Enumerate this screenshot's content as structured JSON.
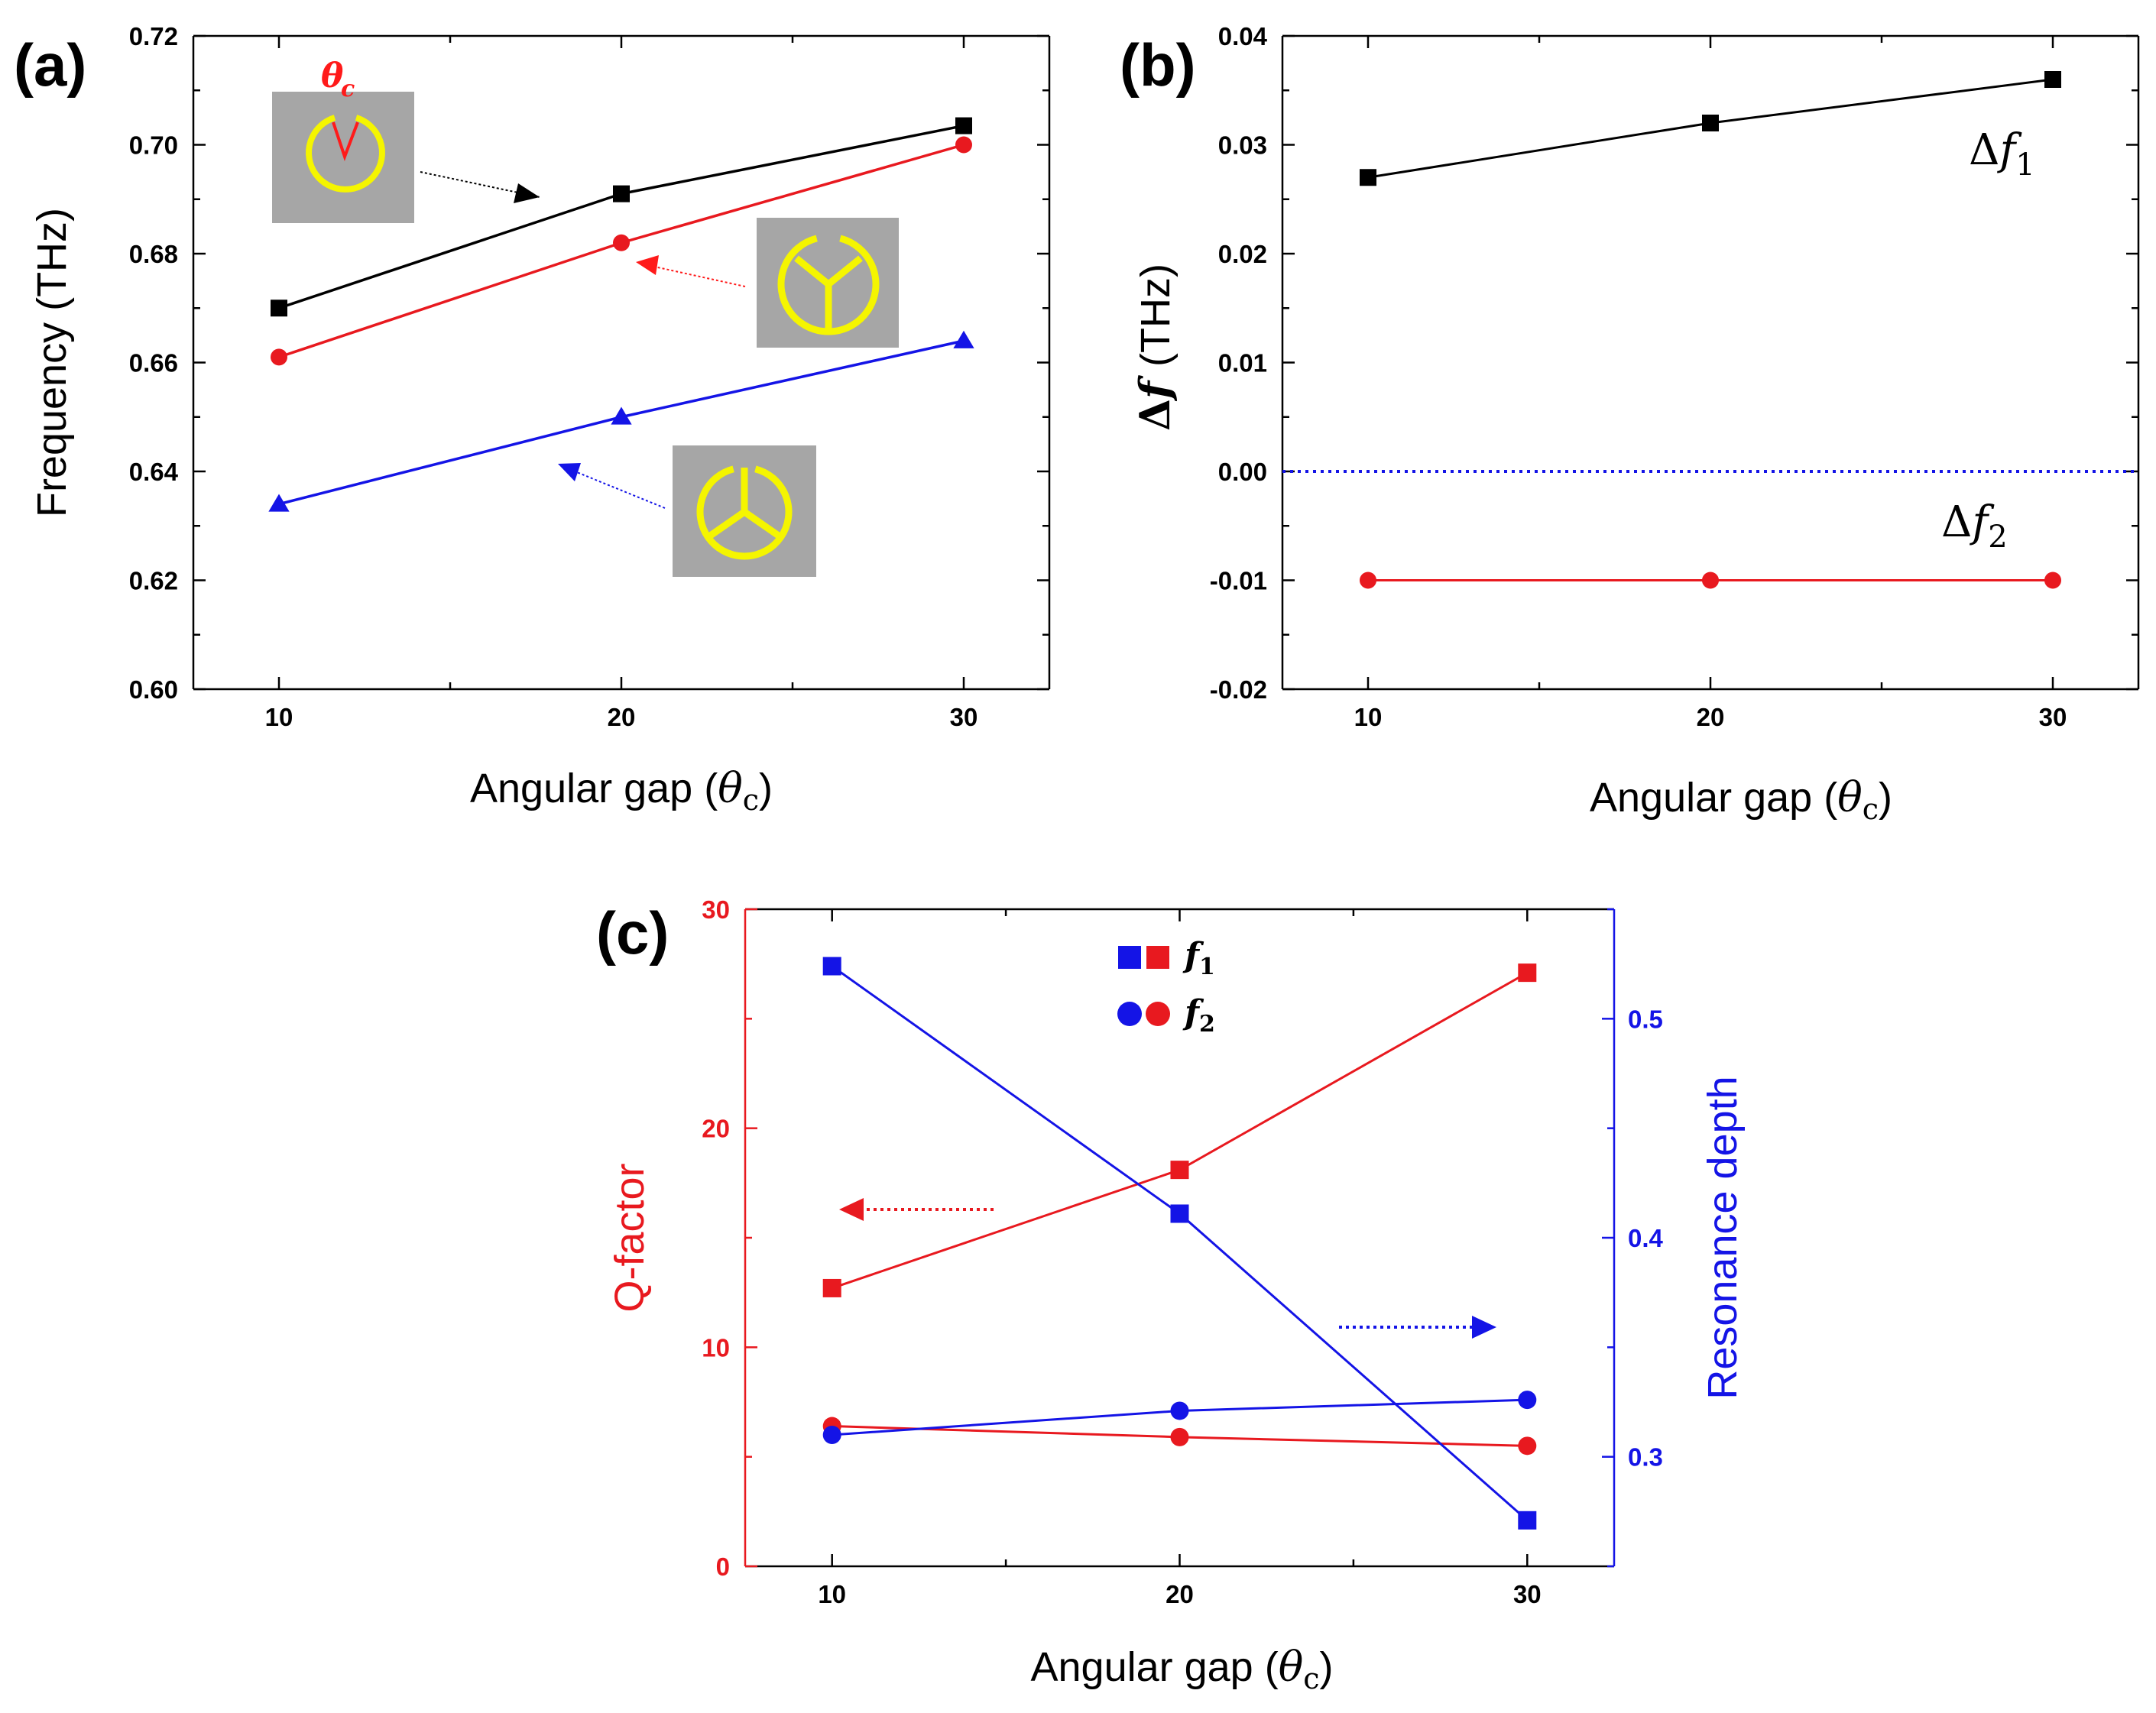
{
  "colors": {
    "black": "#000000",
    "red": "#e8191f",
    "blue": "#1414e6",
    "inset_bg": "#a6a6a6",
    "ring": "#f5f500",
    "gap_red": "#ff1a1a"
  },
  "chart_data": [
    {
      "panel": "(a)",
      "type": "line",
      "xlabel": "Angular gap",
      "ylabel": "Frequency (THz)",
      "xlim": [
        7.5,
        32.5
      ],
      "ylim": [
        0.6,
        0.72
      ],
      "x": [
        10,
        20,
        30
      ],
      "xticks": [
        "10",
        "20",
        "30"
      ],
      "yticks": [
        "0.60",
        "0.62",
        "0.64",
        "0.66",
        "0.68",
        "0.70",
        "0.72"
      ],
      "series": [
        {
          "marker": "square",
          "color": "#000000",
          "values": [
            0.67,
            0.691,
            0.7035
          ]
        },
        {
          "marker": "circle",
          "color": "#e8191f",
          "values": [
            0.661,
            0.682,
            0.7
          ]
        },
        {
          "marker": "triangle",
          "color": "#1414e6",
          "values": [
            0.634,
            0.65,
            0.664
          ]
        }
      ],
      "annotations": [
        {
          "type": "inset",
          "icon": "split-ring-gap-icon",
          "label": "θc"
        },
        {
          "type": "inset",
          "icon": "ring-y-spokes-icon"
        },
        {
          "type": "inset",
          "icon": "ring-inverted-y-spokes-icon"
        }
      ],
      "grid": false
    },
    {
      "panel": "(b)",
      "type": "line",
      "xlabel": "Angular gap",
      "ylabel": "(THz)",
      "xlim": [
        7.5,
        32.5
      ],
      "ylim": [
        -0.02,
        0.04
      ],
      "x": [
        10,
        20,
        30
      ],
      "xticks": [
        "10",
        "20",
        "30"
      ],
      "yticks": [
        "-0.02",
        "-0.01",
        "0.00",
        "0.01",
        "0.02",
        "0.03",
        "0.04"
      ],
      "series": [
        {
          "name": "Δf1",
          "marker": "square",
          "color": "#000000",
          "values": [
            0.027,
            0.032,
            0.036
          ]
        },
        {
          "name": "Δf2",
          "marker": "circle",
          "color": "#e8191f",
          "values": [
            -0.01,
            -0.01,
            -0.01
          ]
        }
      ],
      "reference_line": {
        "y": 0.0,
        "style": "dotted",
        "color": "#1414e6"
      },
      "grid": false
    },
    {
      "panel": "(c)",
      "type": "line",
      "xlabel": "Angular gap",
      "ylabel_left": "Q-factor",
      "ylabel_right": "Resonance depth",
      "xlim": [
        7.5,
        32.5
      ],
      "ylim_left": [
        0,
        30
      ],
      "ylim_right": [
        0.25,
        0.55
      ],
      "x": [
        10,
        20,
        30
      ],
      "xticks": [
        "10",
        "20",
        "30"
      ],
      "yticks_left": [
        "0",
        "10",
        "20",
        "30"
      ],
      "yticks_right": [
        "0.3",
        "0.4",
        "0.5"
      ],
      "series": [
        {
          "name": "f1",
          "axis": "left",
          "marker": "square",
          "color": "#e8191f",
          "values": [
            12.7,
            18.1,
            27.1
          ]
        },
        {
          "name": "f2",
          "axis": "left",
          "marker": "circle",
          "color": "#e8191f",
          "values": [
            6.4,
            5.9,
            5.5
          ]
        },
        {
          "name": "f1",
          "axis": "right",
          "marker": "square",
          "color": "#1414e6",
          "values": [
            0.524,
            0.411,
            0.271
          ]
        },
        {
          "name": "f2",
          "axis": "right",
          "marker": "circle",
          "color": "#1414e6",
          "values": [
            0.31,
            0.321,
            0.326
          ]
        }
      ],
      "legend": {
        "placement": "top-center",
        "entries": [
          "f1",
          "f2"
        ]
      },
      "grid": false
    }
  ]
}
